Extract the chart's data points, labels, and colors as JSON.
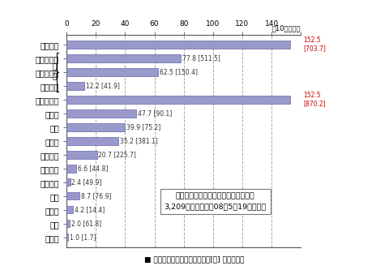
{
  "categories": [
    "アメリカ",
    "米商業銀行",
    "米投資銀行",
    "米その他",
    "ヨーロッパ",
    "スイス",
    "英国",
    "ドイツ",
    "フランス",
    "ベルギー",
    "オランダ",
    "日本",
    "カナダ",
    "中国",
    "アラブ"
  ],
  "values": [
    152.5,
    77.8,
    62.5,
    12.2,
    152.5,
    47.7,
    39.9,
    35.2,
    20.7,
    6.6,
    2.4,
    8.7,
    4.2,
    2.0,
    1.0
  ],
  "equity": [
    703.7,
    511.5,
    150.4,
    41.9,
    870.2,
    90.1,
    75.2,
    381.1,
    225.7,
    44.8,
    49.9,
    76.9,
    14.4,
    61.8,
    1.7
  ],
  "bar_color": "#9999cc",
  "bar_edge_color": "#6666aa",
  "bg_color": "#ffffff",
  "xlim_max": 160,
  "xticks": [
    0,
    20,
    40,
    60,
    80,
    100,
    120,
    140,
    160
  ],
  "xlabel_unit": "（10億ドル）",
  "box_title_line1": "世界全体でのサブプライム関連損失額",
  "box_title_line2": "3,209　億ドル　（08年5月19日時点）",
  "legend_loss": "サブプライム関連損失額",
  "legend_equity": "自己資本額",
  "bracket_label": "内\n訳",
  "bracket_indices": [
    1,
    2,
    3
  ],
  "overflow_indices": [
    0,
    4
  ],
  "overflow_labels": [
    "152.5\n[703.7]",
    "152.5\n[870.2]"
  ]
}
